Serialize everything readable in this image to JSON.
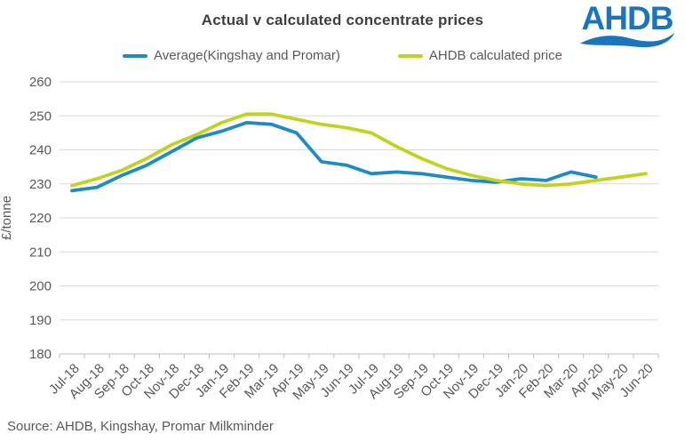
{
  "header": {
    "title": "Actual v calculated concentrate prices",
    "logo_text": "AHDB"
  },
  "legend": {
    "items": [
      {
        "label": "Average(Kingshay and Promar)",
        "color": "#1e8bc6"
      },
      {
        "label": "AHDB calculated price",
        "color": "#c1d21f"
      }
    ]
  },
  "footer": {
    "source": "Source: AHDB, Kingshay, Promar Milkminder"
  },
  "colors": {
    "brand_blue": "#1b75bc",
    "title_text": "#3f3f3f",
    "axis_text": "#595959",
    "gridline": "#d9d9d9",
    "axis_line": "#bfbfbf",
    "background": "#ffffff"
  },
  "chart_data": {
    "type": "line",
    "title": "Actual v calculated concentrate prices",
    "xlabel": "",
    "ylabel": "£/tonne",
    "ylim": [
      180,
      260
    ],
    "ytick_step": 10,
    "grid": true,
    "legend_position": "top",
    "categories": [
      "Jul-18",
      "Aug-18",
      "Sep-18",
      "Oct-18",
      "Nov-18",
      "Dec-18",
      "Jan-19",
      "Feb-19",
      "Mar-19",
      "Apr-19",
      "May-19",
      "Jun-19",
      "Jul-19",
      "Aug-19",
      "Sep-19",
      "Oct-19",
      "Nov-19",
      "Dec-19",
      "Jan-20",
      "Feb-20",
      "Mar-20",
      "Apr-20",
      "May-20",
      "Jun-20"
    ],
    "series": [
      {
        "name": "Average(Kingshay and Promar)",
        "color": "#1e8bc6",
        "values": [
          228,
          229,
          232.5,
          235.5,
          239.5,
          243.5,
          245.5,
          248,
          247.5,
          245,
          236.5,
          235.5,
          233,
          233.5,
          233,
          232,
          231,
          230.5,
          231.5,
          231,
          233.5,
          232,
          null,
          null
        ]
      },
      {
        "name": "AHDB calculated price",
        "color": "#c1d21f",
        "values": [
          229.5,
          231.5,
          234,
          237.5,
          241.5,
          244.5,
          248,
          250.5,
          250.5,
          249,
          247.5,
          246.5,
          245,
          241,
          237.5,
          234.5,
          232.5,
          231,
          230,
          229.5,
          230,
          231,
          232,
          233
        ]
      }
    ]
  }
}
